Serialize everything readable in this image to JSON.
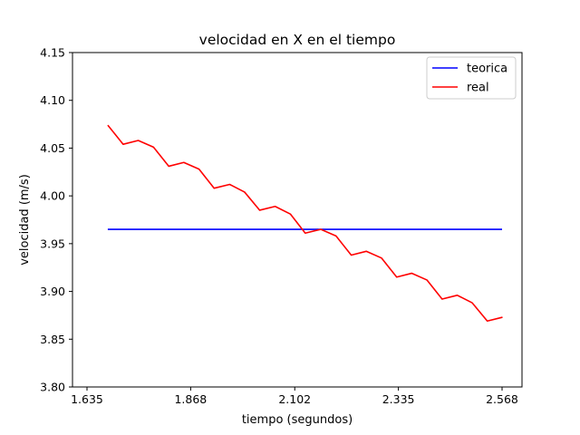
{
  "chart_data": {
    "type": "line",
    "title": "velocidad en X en el tiempo",
    "xlabel": "tiempo (segundos)",
    "ylabel": "velocidad (m/s)",
    "xlim": [
      1.635,
      2.568
    ],
    "ylim": [
      3.8,
      4.15
    ],
    "x_ticks": [
      1.635,
      1.868,
      2.102,
      2.335,
      2.568
    ],
    "x_tick_labels": [
      "1.635",
      "1.868",
      "2.102",
      "2.335",
      "2.568"
    ],
    "y_ticks": [
      3.8,
      3.85,
      3.9,
      3.95,
      4.0,
      4.05,
      4.1,
      4.15
    ],
    "y_tick_labels": [
      "3.80",
      "3.85",
      "3.90",
      "3.95",
      "4.00",
      "4.05",
      "4.10",
      "4.15"
    ],
    "grid": false,
    "legend_position": "top-right",
    "series": [
      {
        "name": "teorica",
        "color": "#0000ff",
        "x": [
          1.6817,
          2.568
        ],
        "y": [
          3.965,
          3.965
        ]
      },
      {
        "name": "real",
        "color": "#ff0000",
        "x": [
          1.6817,
          1.7163,
          1.7502,
          1.7845,
          1.8189,
          1.8526,
          1.8868,
          1.9208,
          1.9557,
          1.9892,
          2.0232,
          2.0579,
          2.0921,
          2.1256,
          2.1605,
          2.1948,
          2.229,
          2.2627,
          2.2969,
          2.3311,
          2.3648,
          2.399,
          2.4332,
          2.4673,
          2.501,
          2.5348,
          2.569
        ],
        "y": [
          4.074,
          4.054,
          4.058,
          4.051,
          4.031,
          4.035,
          4.028,
          4.008,
          4.012,
          4.004,
          3.985,
          3.989,
          3.981,
          3.961,
          3.965,
          3.958,
          3.938,
          3.942,
          3.935,
          3.915,
          3.919,
          3.912,
          3.892,
          3.896,
          3.888,
          3.869,
          3.873
        ]
      }
    ]
  }
}
